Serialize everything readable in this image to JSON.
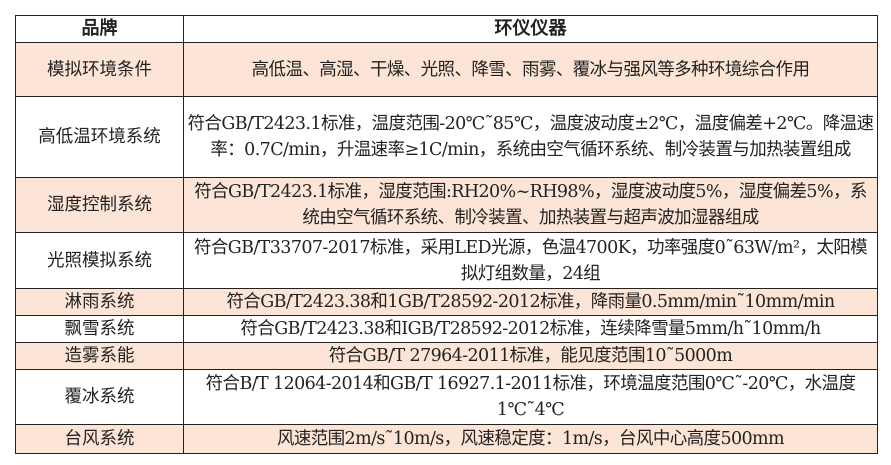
{
  "header": {
    "col1": "品牌",
    "col2": "环仪仪器"
  },
  "rows": [
    {
      "name": "模拟环境条件",
      "desc": "高低温、高湿、干燥、光照、降雪、雨雾、覆冰与强风等多种环境综合作用"
    },
    {
      "name": "高低温环境系统",
      "desc": "符合GB/T2423.1标准，温度范围-20℃˜85℃，温度波动度±2℃，温度偏差+2℃。降温速率：0.7C/min，升温速率≥1C/min，系统由空气循环系统、制冷装置与加热装置组成"
    },
    {
      "name": "湿度控制系统",
      "desc": "符合GB/T2423.1标准，湿度范围:RH20%~RH98%，湿度波动度5%，湿度偏差5%，系统由空气循环系统、制冷装置、加热装置与超声波加湿器组成"
    },
    {
      "name": "光照模拟系统",
      "desc": "符合GB/T33707-2017标准，采用LED光源，色温4700K，功率强度0˜63W/m²，太阳模拟灯组数量，24组"
    },
    {
      "name": "淋雨系统",
      "desc": "符合GB/T2423.38和1GB/T28592-2012标准，降雨量0.5mm/min˜10mm/min"
    },
    {
      "name": "飘雪系统",
      "desc": "符合GB/T2423.38和IGB/T28592-2012标准，连续降雪量5mm/h˜10mm/h"
    },
    {
      "name": "造雾系能",
      "desc": "符合GB/T 27964-2011标准，能见度范围10˜5000m"
    },
    {
      "name": "覆冰系统",
      "desc": "符合B/T 12064-2014和GB/T 16927.1-2011标准，环境温度范围0℃˜-20℃，水温度1℃˜4℃"
    },
    {
      "name": "台风系统",
      "desc": "风速范围2m/s˜10m/s，风速稳定度：1m/s，台风中心高度500mm"
    }
  ],
  "colors": {
    "stripe": "#fce4d6",
    "border": "#222222"
  }
}
